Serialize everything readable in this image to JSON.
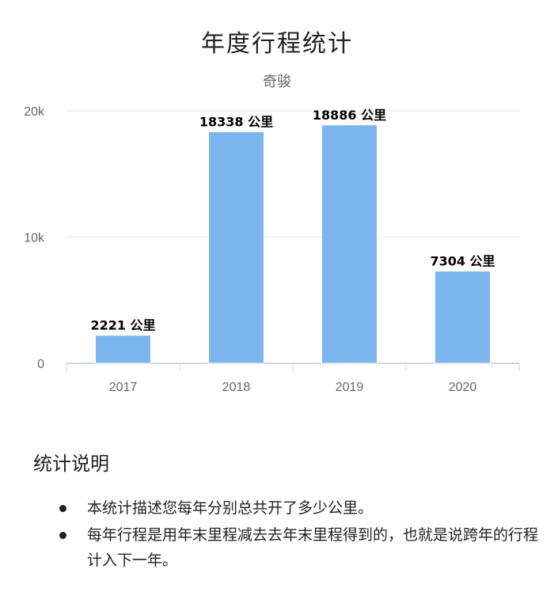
{
  "title": "年度行程统计",
  "subtitle": "奇骏",
  "chart_data": {
    "type": "bar",
    "categories": [
      "2017",
      "2018",
      "2019",
      "2020"
    ],
    "values": [
      2221,
      18338,
      18886,
      7304
    ],
    "data_labels": [
      "2221 公里",
      "18338 公里",
      "18886 公里",
      "7304 公里"
    ],
    "yticks": [
      0,
      10000,
      20000
    ],
    "ytick_labels": [
      "0",
      "10k",
      "20k"
    ],
    "ylim": [
      0,
      20000
    ],
    "grid": true,
    "legend": "none",
    "bar_color": "#7cb5ec"
  },
  "notes": {
    "heading": "统计说明",
    "items": [
      "本统计描述您每年分别总共开了多少公里。",
      "每年行程是用年末里程减去去年末里程得到的，也就是说跨年的行程计入下一年。"
    ]
  }
}
